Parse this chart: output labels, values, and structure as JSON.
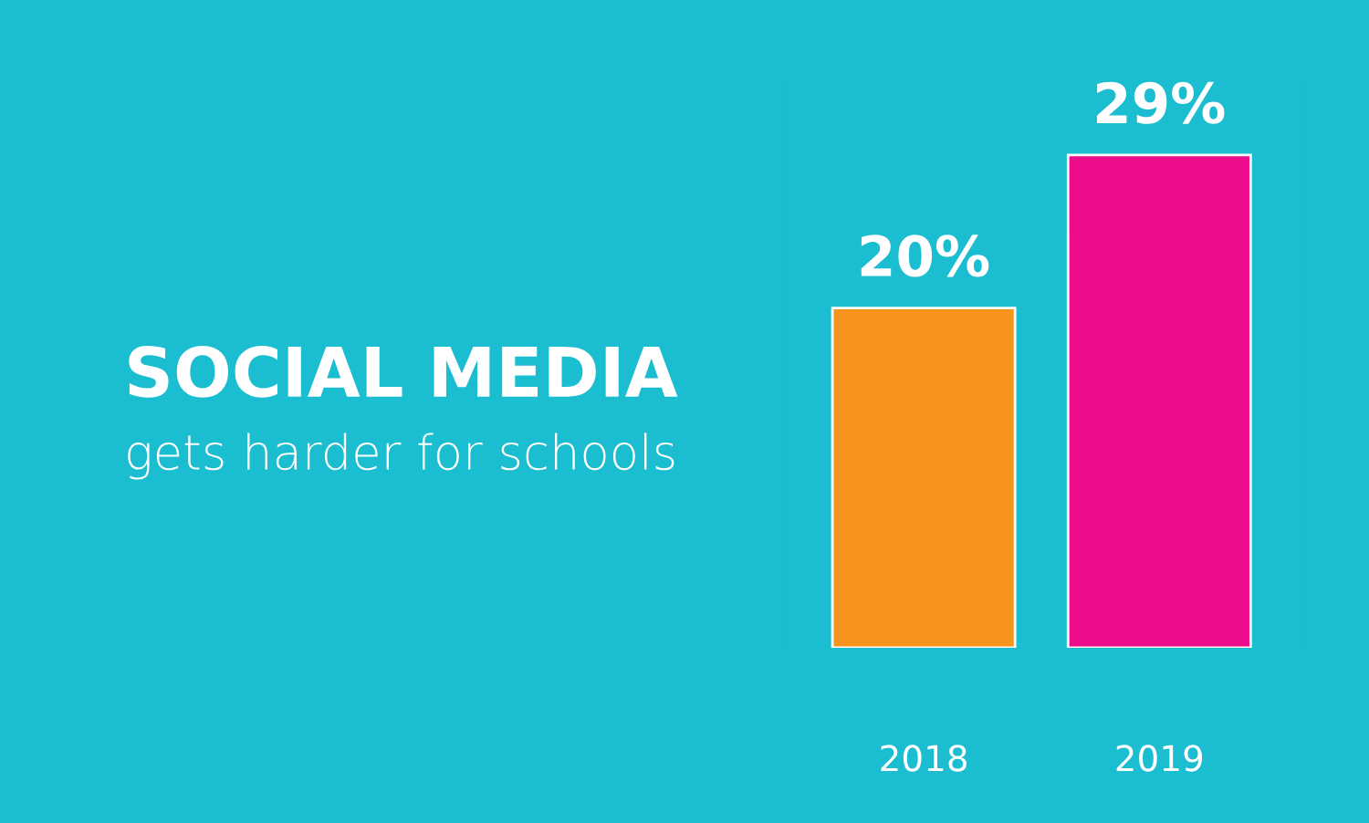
{
  "chart_data": {
    "type": "bar",
    "title": "SOCIAL MEDIA",
    "subtitle": "gets harder for schools",
    "categories": [
      "2018",
      "2019"
    ],
    "values": [
      20,
      29
    ],
    "colors": [
      "#f7941d",
      "#ec0c8c"
    ],
    "value_labels": [
      "20%",
      "29%"
    ],
    "grid": false,
    "legend": false
  }
}
